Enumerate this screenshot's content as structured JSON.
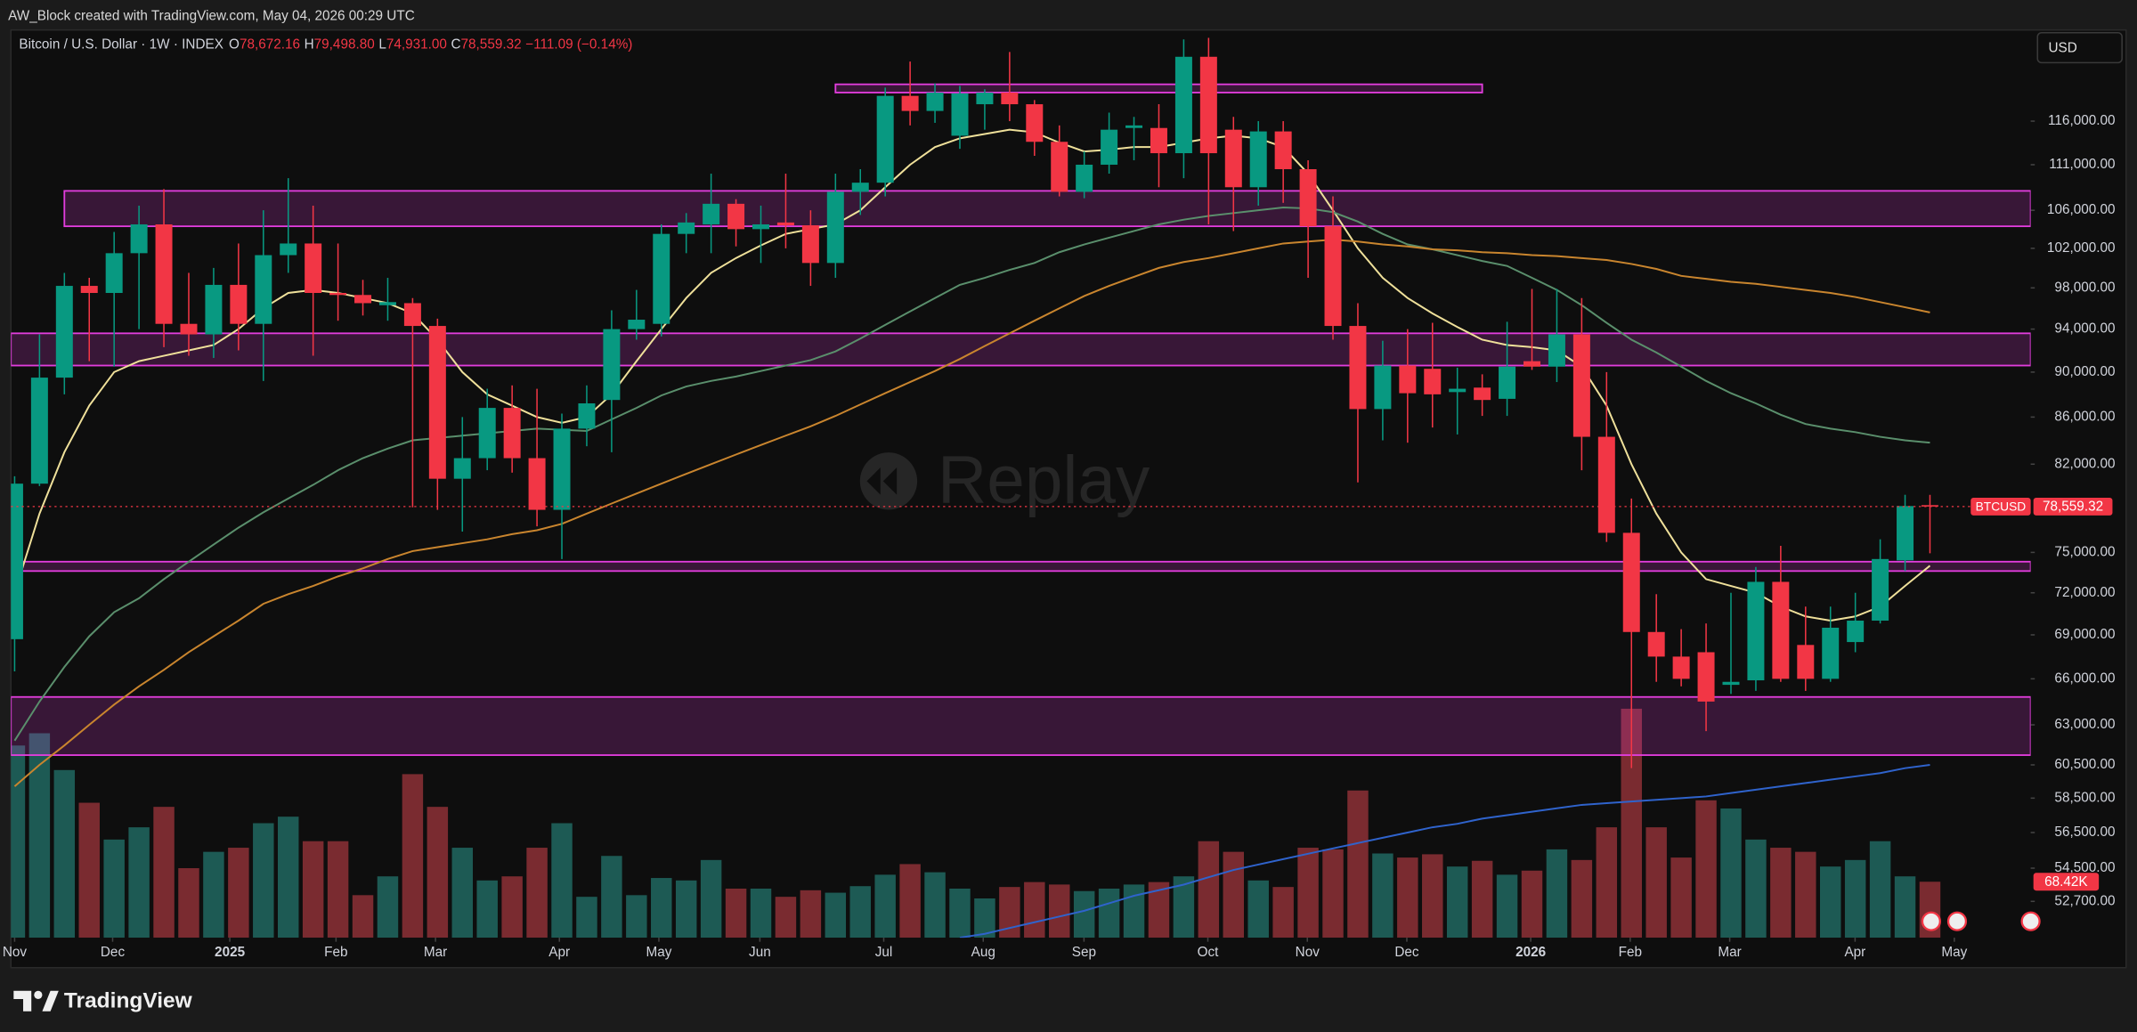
{
  "header": {
    "attribution": "AW_Block created with TradingView.com, May 04, 2026 00:29 UTC"
  },
  "footer": {
    "brand": "TradingView"
  },
  "chart_data": {
    "type": "candlestick",
    "symbol_title": "Bitcoin / U.S. Dollar · 1W · INDEX",
    "legend": [
      {
        "key": "O",
        "value": "78,672.16"
      },
      {
        "key": "H",
        "value": "79,498.80"
      },
      {
        "key": "L",
        "value": "74,931.00"
      },
      {
        "key": "C",
        "value": "78,559.32"
      }
    ],
    "change": "−111.09 (−0.14%)",
    "currency": "USD",
    "watermark": "Replay",
    "log_scale": true,
    "ylim": [
      50800,
      127200
    ],
    "yticks": [
      {
        "value": 116000,
        "label": "116,000.00"
      },
      {
        "value": 111000,
        "label": "111,000.00"
      },
      {
        "value": 106000,
        "label": "106,000.00"
      },
      {
        "value": 102000,
        "label": "102,000.00"
      },
      {
        "value": 98000,
        "label": "98,000.00"
      },
      {
        "value": 94000,
        "label": "94,000.00"
      },
      {
        "value": 90000,
        "label": "90,000.00"
      },
      {
        "value": 86000,
        "label": "86,000.00"
      },
      {
        "value": 82000,
        "label": "82,000.00"
      },
      {
        "value": 75000,
        "label": "75,000.00"
      },
      {
        "value": 72000,
        "label": "72,000.00"
      },
      {
        "value": 69000,
        "label": "69,000.00"
      },
      {
        "value": 66000,
        "label": "66,000.00"
      },
      {
        "value": 63000,
        "label": "63,000.00"
      },
      {
        "value": 60500,
        "label": "60,500.00"
      },
      {
        "value": 58500,
        "label": "58,500.00"
      },
      {
        "value": 56500,
        "label": "56,500.00"
      },
      {
        "value": 54500,
        "label": "54,500.00"
      },
      {
        "value": 52700,
        "label": "52,700.00"
      }
    ],
    "xlim": [
      -0.15,
      81.05
    ],
    "xticks": [
      {
        "value": 0,
        "label": "Nov"
      },
      {
        "value": 3.94,
        "label": "Dec"
      },
      {
        "value": 8.65,
        "label": "2025"
      },
      {
        "value": 12.92,
        "label": "Feb"
      },
      {
        "value": 16.92,
        "label": "Mar"
      },
      {
        "value": 21.9,
        "label": "Apr"
      },
      {
        "value": 25.9,
        "label": "May"
      },
      {
        "value": 29.96,
        "label": "Jun"
      },
      {
        "value": 34.94,
        "label": "Jul"
      },
      {
        "value": 38.94,
        "label": "Aug"
      },
      {
        "value": 42.99,
        "label": "Sep"
      },
      {
        "value": 47.97,
        "label": "Oct"
      },
      {
        "value": 51.97,
        "label": "Nov"
      },
      {
        "value": 55.97,
        "label": "Dec"
      },
      {
        "value": 60.95,
        "label": "2026"
      },
      {
        "value": 64.95,
        "label": "Feb"
      },
      {
        "value": 68.95,
        "label": "Mar"
      },
      {
        "value": 73.99,
        "label": "Apr"
      },
      {
        "value": 77.98,
        "label": "May"
      }
    ],
    "open": [
      68700,
      80400,
      89500,
      98200,
      97500,
      101500,
      104500,
      94500,
      93500,
      98300,
      94500,
      101300,
      102500,
      97500,
      97300,
      96300,
      96500,
      94300,
      80800,
      82500,
      86800,
      82500,
      78300,
      85000,
      87500,
      94000,
      94500,
      103500,
      104500,
      106700,
      104000,
      104700,
      104400,
      100500,
      108000,
      109000,
      119000,
      117200,
      114300,
      118000,
      119400,
      118000,
      113600,
      108000,
      111000,
      115200,
      115200,
      112300,
      123800,
      115000,
      108500,
      114800,
      110500,
      104300,
      94300,
      86700,
      90600,
      90300,
      88200,
      88600,
      87600,
      91000,
      90500,
      93500,
      84300,
      76500,
      69200,
      67500,
      67800,
      65600,
      65900,
      72800,
      68300,
      66000,
      68500,
      70000,
      74400,
      78672.16
    ],
    "high": [
      81000,
      93500,
      99500,
      99000,
      103700,
      106500,
      108300,
      99500,
      100000,
      102500,
      106000,
      109500,
      106500,
      102500,
      98800,
      99000,
      97000,
      95000,
      86000,
      88500,
      88800,
      88500,
      86300,
      88800,
      95800,
      97800,
      104500,
      105700,
      110000,
      107200,
      106500,
      110000,
      106000,
      110000,
      110500,
      120000,
      123200,
      120500,
      120200,
      119800,
      124400,
      118500,
      115500,
      112500,
      117000,
      116500,
      118000,
      126000,
      126200,
      116500,
      116000,
      116000,
      111500,
      107500,
      96500,
      92900,
      94000,
      94600,
      90400,
      89800,
      94700,
      97900,
      97900,
      97000,
      90000,
      79200,
      71900,
      69400,
      69800,
      72000,
      73900,
      75500,
      71000,
      71000,
      72000,
      76000,
      79500,
      79498.8
    ],
    "low": [
      66500,
      80200,
      88000,
      91000,
      90500,
      94000,
      92300,
      91500,
      91300,
      92000,
      89200,
      99500,
      91500,
      94800,
      95300,
      94800,
      78500,
      78300,
      76600,
      81500,
      81300,
      77000,
      74500,
      83500,
      83000,
      93000,
      93300,
      101500,
      101500,
      102200,
      100500,
      102000,
      98200,
      99000,
      105500,
      107500,
      115500,
      115800,
      112800,
      115000,
      116000,
      112000,
      107500,
      107300,
      110000,
      111500,
      108500,
      109500,
      104500,
      103800,
      106500,
      106800,
      99000,
      93000,
      80500,
      84000,
      83800,
      85100,
      84500,
      86100,
      86100,
      90200,
      89100,
      81500,
      75800,
      60300,
      65800,
      65500,
      62600,
      65000,
      65200,
      65800,
      65200,
      65800,
      67800,
      69800,
      73600,
      74931.0
    ],
    "close": [
      80400,
      89500,
      98200,
      97500,
      101500,
      104500,
      94500,
      93500,
      98300,
      94500,
      101300,
      102500,
      97500,
      97300,
      96500,
      96600,
      94300,
      80800,
      82500,
      86800,
      82500,
      78300,
      85000,
      87200,
      94000,
      94900,
      103500,
      104700,
      106700,
      104000,
      104500,
      104400,
      100500,
      108000,
      109000,
      119000,
      117200,
      119400,
      119300,
      119400,
      118000,
      113600,
      108000,
      111000,
      115000,
      115500,
      112300,
      123800,
      112300,
      108500,
      114800,
      110500,
      104300,
      94300,
      86700,
      90600,
      88100,
      88000,
      88500,
      87500,
      90500,
      90500,
      93500,
      84300,
      76500,
      69200,
      67500,
      66000,
      64500,
      65800,
      72800,
      66000,
      66000,
      69500,
      70000,
      74500,
      78600,
      78559.32
    ],
    "volume": [
      235000,
      250000,
      205000,
      165000,
      120000,
      135000,
      160000,
      85000,
      105000,
      110000,
      140000,
      148000,
      118000,
      118000,
      52000,
      75000,
      200000,
      160000,
      110000,
      70000,
      75000,
      110000,
      140000,
      50000,
      100000,
      52000,
      73000,
      70000,
      95000,
      60000,
      60000,
      50000,
      58000,
      55000,
      63000,
      77000,
      90000,
      80000,
      60000,
      48000,
      62000,
      68000,
      65000,
      57000,
      60000,
      65000,
      68000,
      75000,
      118000,
      105000,
      70000,
      62000,
      110000,
      108000,
      180000,
      103000,
      98000,
      102000,
      87000,
      94000,
      77000,
      82000,
      108000,
      95000,
      135000,
      280000,
      135000,
      98000,
      168000,
      158000,
      120000,
      110000,
      105000,
      87000,
      95000,
      118000,
      75000,
      68420
    ],
    "volume_ylim": [
      0,
      400000
    ],
    "up_color": "#089981",
    "down_color": "#f23645",
    "volume_up_color": "#1d5a54",
    "volume_down_color": "#7a2b30",
    "moving_averages": [
      {
        "color": "#efe09a",
        "values": [
          72000,
          78000,
          83000,
          87000,
          90000,
          91000,
          91500,
          92000,
          92500,
          94000,
          96000,
          97500,
          97800,
          97500,
          97000,
          96500,
          95500,
          93000,
          90000,
          88000,
          87000,
          86000,
          85500,
          86000,
          88000,
          91000,
          94000,
          97000,
          99500,
          101000,
          102300,
          103500,
          104000,
          104500,
          106000,
          108500,
          111000,
          113000,
          114000,
          114500,
          115000,
          114700,
          113500,
          112500,
          112700,
          113000,
          113000,
          113500,
          114000,
          114300,
          114000,
          113000,
          110000,
          106000,
          102000,
          99000,
          97000,
          95500,
          94200,
          93000,
          92500,
          92300,
          92000,
          90500,
          87000,
          82000,
          78000,
          75000,
          73000,
          72500,
          72000,
          71000,
          70300,
          70000,
          70300,
          71000,
          72500,
          74000
        ]
      },
      {
        "color": "#5a8f6c",
        "values": [
          62000,
          64500,
          66800,
          68900,
          70600,
          71600,
          73000,
          74300,
          75600,
          76900,
          78100,
          79200,
          80300,
          81500,
          82500,
          83300,
          84000,
          84200,
          84400,
          84600,
          84800,
          85000,
          84900,
          84800,
          85800,
          86800,
          87900,
          88700,
          89200,
          89600,
          90100,
          90600,
          91100,
          91900,
          93100,
          94400,
          95700,
          97000,
          98300,
          99000,
          99800,
          100500,
          101600,
          102400,
          103100,
          103800,
          104500,
          105000,
          105400,
          105700,
          106000,
          106300,
          106200,
          105800,
          104800,
          103500,
          102400,
          101900,
          101300,
          100700,
          100200,
          99000,
          97800,
          96300,
          94600,
          93000,
          91800,
          90500,
          89200,
          88100,
          87200,
          86200,
          85400,
          85000,
          84700,
          84300,
          84000,
          83800
        ]
      },
      {
        "color": "#c9852e",
        "values": [
          59200,
          60500,
          61700,
          63000,
          64300,
          65500,
          66600,
          67800,
          68900,
          70000,
          71200,
          71900,
          72500,
          73200,
          73800,
          74500,
          75100,
          75400,
          75700,
          76000,
          76400,
          76700,
          77200,
          78000,
          78800,
          79600,
          80400,
          81200,
          82000,
          82800,
          83600,
          84400,
          85200,
          86100,
          87100,
          88100,
          89100,
          90100,
          91200,
          92400,
          93600,
          94800,
          96000,
          97200,
          98200,
          99100,
          100000,
          100600,
          101000,
          101500,
          102000,
          102500,
          102700,
          102900,
          102700,
          102400,
          102200,
          101900,
          101800,
          101600,
          101500,
          101300,
          101200,
          101000,
          100800,
          100400,
          99900,
          99200,
          98900,
          98600,
          98400,
          98100,
          97800,
          97500,
          97100,
          96600,
          96100,
          95600
        ]
      },
      {
        "color": "#2f63cc",
        "values": [
          null,
          null,
          null,
          null,
          null,
          null,
          null,
          null,
          null,
          null,
          null,
          null,
          null,
          null,
          null,
          null,
          null,
          null,
          null,
          null,
          null,
          null,
          null,
          null,
          null,
          null,
          null,
          null,
          null,
          null,
          null,
          null,
          null,
          null,
          null,
          null,
          null,
          null,
          50800,
          51000,
          51300,
          51600,
          51900,
          52200,
          52600,
          53000,
          53300,
          53600,
          54000,
          54400,
          54700,
          55000,
          55300,
          55600,
          55900,
          56200,
          56500,
          56800,
          57000,
          57300,
          57500,
          57700,
          57900,
          58100,
          58200,
          58300,
          58400,
          58500,
          58600,
          58800,
          59000,
          59200,
          59400,
          59600,
          59800,
          60000,
          60300,
          60500
        ]
      }
    ],
    "zone_color": "#e23ddd",
    "zones": [
      {
        "low": 119400,
        "high": 120400,
        "start": 33,
        "end": 59
      },
      {
        "low": 104300,
        "high": 108100,
        "start": 2
      },
      {
        "low": 90600,
        "high": 93600
      },
      {
        "low": 73600,
        "high": 74300,
        "start": 0
      },
      {
        "low": 61100,
        "high": 64800
      }
    ],
    "price_line": {
      "name": "BTCUSD",
      "value": 78559.32,
      "label": "78,559.32",
      "color": "#f23645"
    },
    "volume_label": {
      "value": 68420,
      "label": "68.42K"
    }
  }
}
